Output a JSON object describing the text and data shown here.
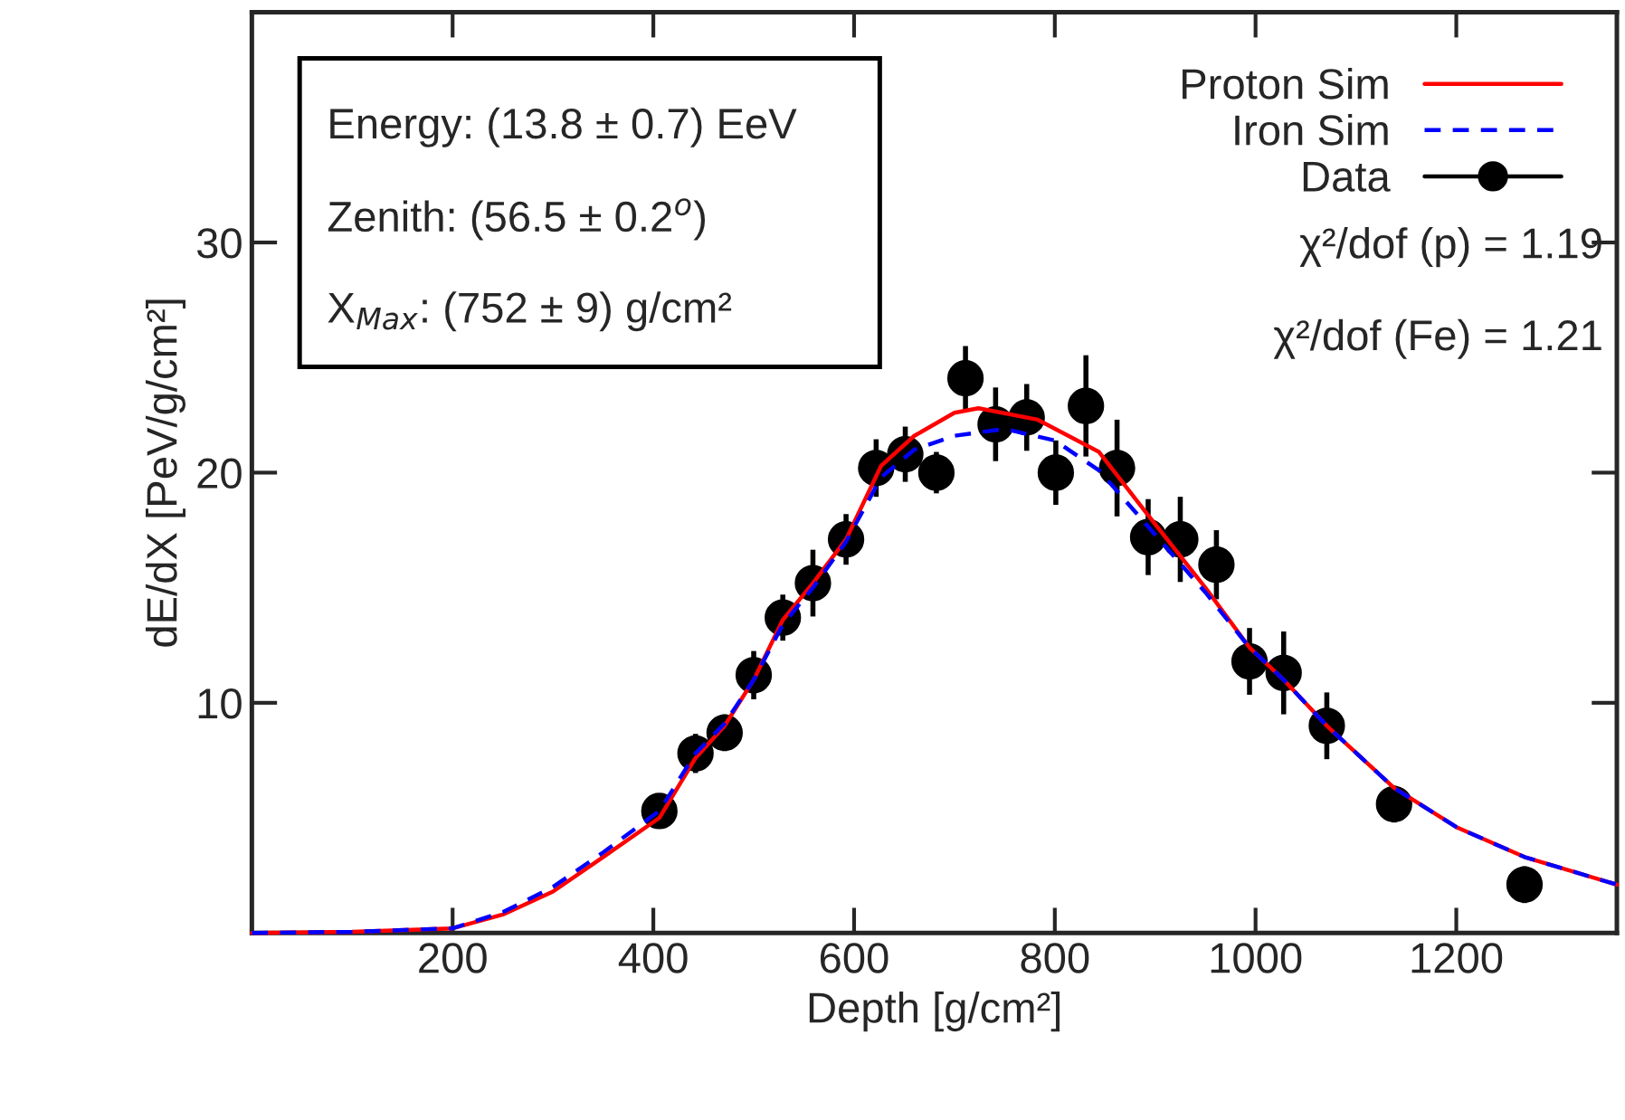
{
  "chart_data": {
    "type": "line",
    "xlabel": "Depth [g/cm²]",
    "ylabel": "dE/dX [PeV/g/cm²]",
    "xlim": [
      0,
      1360
    ],
    "ylim": [
      0,
      40
    ],
    "xticks": [
      200,
      400,
      600,
      800,
      1000,
      1200
    ],
    "yticks": [
      10,
      20,
      30
    ],
    "grid": false,
    "legend": "top right",
    "series": [
      {
        "name": "Proton Sim",
        "type": "line",
        "color": "#ff0000",
        "line_style": "solid",
        "marker": "none",
        "x": [
          0,
          100,
          200,
          250,
          300,
          350,
          406,
          442,
          471,
          500,
          529,
          559,
          592,
          627,
          660,
          700,
          724,
          783,
          844,
          892,
          950,
          994,
          1028,
          1071,
          1138,
          1200,
          1268,
          1360
        ],
        "values": [
          0,
          0.05,
          0.2,
          0.8,
          1.8,
          3.3,
          5.0,
          7.6,
          9.0,
          11.0,
          13.6,
          15.2,
          17.1,
          20.3,
          21.6,
          22.6,
          22.8,
          22.3,
          20.9,
          18.2,
          15.0,
          12.4,
          11.0,
          9.0,
          6.3,
          4.6,
          3.3,
          2.1
        ]
      },
      {
        "name": "Iron Sim",
        "type": "line",
        "color": "#0000ff",
        "line_style": "dashed",
        "marker": "none",
        "x": [
          0,
          100,
          200,
          250,
          300,
          350,
          406,
          442,
          471,
          500,
          529,
          559,
          592,
          627,
          660,
          700,
          750,
          800,
          844,
          892,
          950,
          994,
          1028,
          1071,
          1138,
          1200,
          1268,
          1360
        ],
        "values": [
          0,
          0.05,
          0.2,
          0.9,
          2.0,
          3.5,
          5.3,
          7.8,
          9.1,
          11.0,
          13.4,
          15.0,
          17.0,
          19.8,
          21.0,
          21.6,
          21.9,
          21.4,
          20.1,
          17.7,
          14.8,
          12.4,
          11.0,
          9.0,
          6.3,
          4.6,
          3.3,
          2.1
        ]
      },
      {
        "name": "Data",
        "type": "scatter",
        "color": "#000000",
        "marker": "circle",
        "line_style": "solid",
        "x": [
          406,
          442,
          471,
          500,
          529,
          559,
          592,
          622,
          651,
          682,
          711,
          741,
          772,
          801,
          831,
          862,
          893,
          925,
          961,
          994,
          1028,
          1071,
          1138,
          1268
        ],
        "values": [
          5.3,
          7.8,
          8.7,
          11.2,
          13.7,
          15.2,
          17.1,
          20.2,
          20.8,
          20.0,
          24.1,
          22.1,
          22.4,
          20.0,
          22.9,
          20.2,
          17.2,
          17.1,
          16.0,
          11.8,
          11.3,
          9.0,
          5.6,
          2.1
        ],
        "errors": [
          0.6,
          0.85,
          0.8,
          1.05,
          1.0,
          1.45,
          1.1,
          1.25,
          1.2,
          0.9,
          1.4,
          1.6,
          1.45,
          1.4,
          2.2,
          2.1,
          1.65,
          1.85,
          1.5,
          1.45,
          1.8,
          1.45,
          0.8,
          0.8
        ]
      }
    ],
    "annotations": [
      "Energy: (13.8 ± 0.7) EeV",
      "Zenith: (56.5 ± 0.2$^{o}$)",
      "X$_{Max}$: (752 ± 9) g/cm²",
      "χ²/dof (p) = 1.19",
      "χ²/dof (Fe) = 1.21"
    ]
  }
}
